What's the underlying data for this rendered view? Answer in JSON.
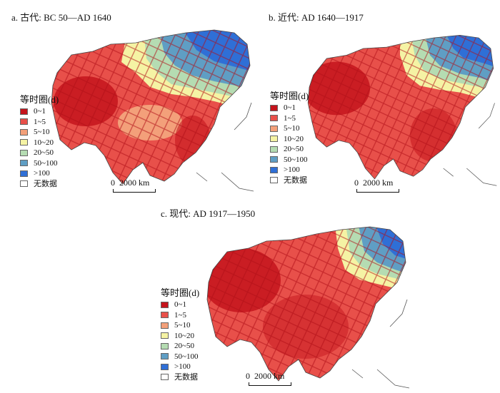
{
  "panels": [
    {
      "title": "a. 古代: BC 50—AD 1640",
      "scale_zero": "0",
      "scale_label": "2000 km"
    },
    {
      "title": "b. 近代: AD 1640—1917",
      "scale_zero": "0",
      "scale_label": "2000 km"
    },
    {
      "title": "c. 现代: AD 1917—1950",
      "scale_zero": "0",
      "scale_label": "2000 km"
    }
  ],
  "legend": {
    "title": "等时圈(d)",
    "items": [
      {
        "label": "0~1",
        "color": "#c4141c"
      },
      {
        "label": "1~5",
        "color": "#e8504a"
      },
      {
        "label": "5~10",
        "color": "#f3a07a"
      },
      {
        "label": "10~20",
        "color": "#f5f3a4"
      },
      {
        "label": "20~50",
        "color": "#b5dcb2"
      },
      {
        "label": "50~100",
        "color": "#5f9ec4"
      },
      {
        "label": ">100",
        "color": "#2f6fd6"
      },
      {
        "label": "无数据",
        "color": "#ffffff"
      }
    ]
  }
}
